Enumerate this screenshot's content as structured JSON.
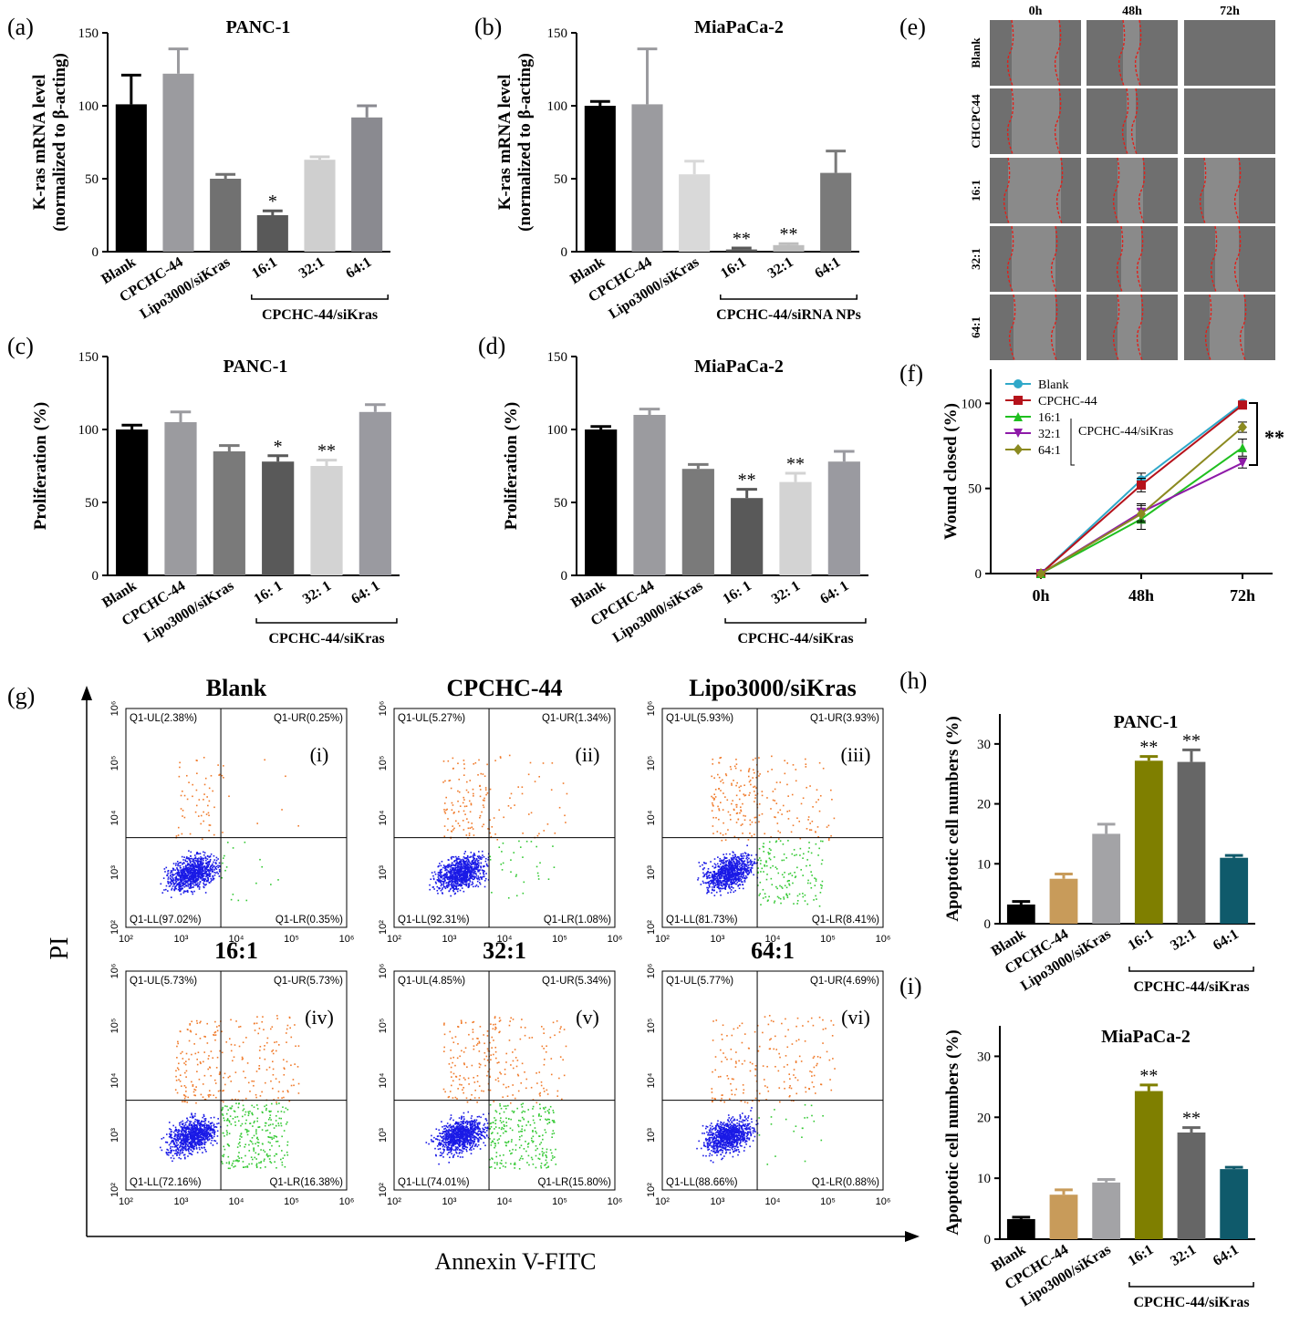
{
  "figure": {
    "panel_labels": [
      "(a)",
      "(b)",
      "(c)",
      "(d)",
      "(e)",
      "(f)",
      "(g)",
      "(h)",
      "(i)"
    ]
  },
  "chart_data": [
    {
      "id": "a",
      "type": "bar",
      "title": "PANC-1",
      "ylabel_lines": [
        "K-ras mRNA level",
        "(normalized to β-acting)"
      ],
      "ylim": [
        0,
        150
      ],
      "yticks": [
        0,
        50,
        100,
        150
      ],
      "categories": [
        "Blank",
        "CPCHC-44",
        "Lipo3000/siKras",
        "16:1",
        "32:1",
        "64:1"
      ],
      "values": [
        101,
        122,
        50,
        25,
        63,
        92
      ],
      "errors": [
        20,
        17,
        3,
        3,
        2,
        8
      ],
      "significance": [
        "",
        "",
        "",
        "*",
        "",
        ""
      ],
      "colors": [
        "#000000",
        "#9b9b9f",
        "#717171",
        "#595959",
        "#cfcfcf",
        "#8a8a90"
      ],
      "group_label": "CPCHC-44/siKras"
    },
    {
      "id": "b",
      "type": "bar",
      "title": "MiaPaCa-2",
      "ylabel_lines": [
        "K-ras mRNA level",
        "(normalized to β-acting)"
      ],
      "ylim": [
        0,
        150
      ],
      "yticks": [
        0,
        50,
        100,
        150
      ],
      "categories": [
        "Blank",
        "CPCHC-44",
        "Lipo3000/siKras",
        "16:1",
        "32:1",
        "64:1"
      ],
      "values": [
        100,
        101,
        53,
        1.5,
        4.5,
        54
      ],
      "errors": [
        3,
        38,
        9,
        1,
        1,
        15
      ],
      "significance": [
        "",
        "",
        "",
        "**",
        "**",
        ""
      ],
      "colors": [
        "#000000",
        "#9b9b9f",
        "#d9d9d9",
        "#595959",
        "#bdbdbd",
        "#7a7a7a"
      ],
      "group_label": "CPCHC-44/siRNA NPs"
    },
    {
      "id": "c",
      "type": "bar",
      "title": "PANC-1",
      "ylabel_lines": [
        "Proliferation (%)"
      ],
      "ylim": [
        0,
        150
      ],
      "yticks": [
        0,
        50,
        100,
        150
      ],
      "categories": [
        "Blank",
        "CPCHC-44",
        "Lipo3000/siKras",
        "16: 1",
        "32: 1",
        "64: 1"
      ],
      "values": [
        100,
        105,
        85,
        78,
        75,
        112
      ],
      "errors": [
        3,
        7,
        4,
        4,
        4,
        5
      ],
      "significance": [
        "",
        "",
        "",
        "*",
        "**",
        ""
      ],
      "colors": [
        "#000000",
        "#9b9b9f",
        "#7a7a7a",
        "#595959",
        "#d3d3d3",
        "#9a9aa0"
      ],
      "group_label": "CPCHC-44/siKras"
    },
    {
      "id": "d",
      "type": "bar",
      "title": "MiaPaCa-2",
      "ylabel_lines": [
        "Proliferation (%)"
      ],
      "ylim": [
        0,
        150
      ],
      "yticks": [
        0,
        50,
        100,
        150
      ],
      "categories": [
        "Blank",
        "CPCHC-44",
        "Lipo3000/siKras",
        "16: 1",
        "32: 1",
        "64: 1"
      ],
      "values": [
        100,
        110,
        73,
        53,
        64,
        78
      ],
      "errors": [
        2,
        4,
        3,
        6,
        6,
        7
      ],
      "significance": [
        "",
        "",
        "",
        "**",
        "**",
        ""
      ],
      "colors": [
        "#000000",
        "#9b9b9f",
        "#7a7a7a",
        "#595959",
        "#d3d3d3",
        "#9a9aa0"
      ],
      "group_label": "CPCHC-44/siKras"
    },
    {
      "id": "f",
      "type": "line",
      "ylabel": "Wound closed (%)",
      "ylim": [
        0,
        120
      ],
      "yticks": [
        0,
        50,
        100
      ],
      "x": [
        "0h",
        "48h",
        "72h"
      ],
      "series": [
        {
          "name": "Blank",
          "values": [
            0,
            55,
            100
          ],
          "errors": [
            0,
            4,
            1
          ],
          "color": "#2fa8c9",
          "marker": "circle"
        },
        {
          "name": "CPCHC-44",
          "values": [
            0,
            52,
            99
          ],
          "errors": [
            0,
            4,
            1
          ],
          "color": "#b5121b",
          "marker": "square"
        },
        {
          "name": "16:1",
          "values": [
            0,
            32,
            74
          ],
          "errors": [
            0,
            6,
            5
          ],
          "color": "#1fbf1f",
          "marker": "triangle-up"
        },
        {
          "name": "32:1",
          "values": [
            0,
            36,
            65
          ],
          "errors": [
            0,
            5,
            3
          ],
          "color": "#8e1aa8",
          "marker": "triangle-down"
        },
        {
          "name": "64:1",
          "values": [
            0,
            35,
            86
          ],
          "errors": [
            0,
            5,
            3
          ],
          "color": "#8b8a20",
          "marker": "diamond"
        }
      ],
      "legend_group_label": "CPCHC-44/siKras",
      "significance": "**"
    },
    {
      "id": "h",
      "type": "bar",
      "title": "PANC-1",
      "ylabel": "Apoptotic cell numbers (%)",
      "ylim": [
        0,
        35
      ],
      "yticks": [
        0,
        10,
        20,
        30
      ],
      "categories": [
        "Blank",
        "CPCHC-44",
        "Lipo3000/siKras",
        "16:1",
        "32:1",
        "64:1"
      ],
      "values": [
        3.2,
        7.5,
        15,
        27.2,
        27,
        11
      ],
      "errors": [
        0.5,
        0.8,
        1.6,
        0.7,
        2,
        0.4
      ],
      "significance": [
        "",
        "",
        "",
        "**",
        "**",
        ""
      ],
      "colors": [
        "#000000",
        "#c89b5a",
        "#a3a3a6",
        "#7f7f00",
        "#666666",
        "#0f5a6b"
      ],
      "group_label": "CPCHC-44/siKras"
    },
    {
      "id": "i",
      "type": "bar",
      "title": "MiaPaCa-2",
      "ylabel": "Apoptotic cell numbers (%)",
      "ylim": [
        0,
        35
      ],
      "yticks": [
        0,
        10,
        20,
        30
      ],
      "categories": [
        "Blank",
        "CPCHC-44",
        "Lipo3000/siKras",
        "16:1",
        "32:1",
        "64:1"
      ],
      "values": [
        3.3,
        7.3,
        9.3,
        24.3,
        17.5,
        11.5
      ],
      "errors": [
        0.3,
        0.8,
        0.5,
        1.0,
        0.8,
        0.3
      ],
      "significance": [
        "",
        "",
        "",
        "**",
        "**",
        ""
      ],
      "colors": [
        "#000000",
        "#c89b5a",
        "#a3a3a6",
        "#7f7f00",
        "#666666",
        "#0f5a6b"
      ],
      "group_label": "CPCHC-44/siKras"
    }
  ],
  "wound_images": {
    "columns": [
      "0h",
      "48h",
      "72h"
    ],
    "rows": [
      "Blank",
      "CHCPC44",
      "16:1",
      "32:1",
      "64:1"
    ]
  },
  "flow": {
    "xlabel": "Annexin V-FITC",
    "ylabel": "PI",
    "tick_labels": [
      "10²",
      "10³",
      "10⁴",
      "10⁵",
      "10⁶"
    ],
    "plots": [
      {
        "title": "Blank",
        "roman": "(i)",
        "ul": "Q1-UL(2.38%)",
        "ur": "Q1-UR(0.25%)",
        "ll": "Q1-LL(97.02%)",
        "lr": "Q1-LR(0.35%)"
      },
      {
        "title": "CPCHC-44",
        "roman": "(ii)",
        "ul": "Q1-UL(5.27%)",
        "ur": "Q1-UR(1.34%)",
        "ll": "Q1-LL(92.31%)",
        "lr": "Q1-LR(1.08%)"
      },
      {
        "title": "Lipo3000/siKras",
        "roman": "(iii)",
        "ul": "Q1-UL(5.93%)",
        "ur": "Q1-UR(3.93%)",
        "ll": "Q1-LL(81.73%)",
        "lr": "Q1-LR(8.41%)"
      },
      {
        "title": "16:1",
        "roman": "(iv)",
        "ul": "Q1-UL(5.73%)",
        "ur": "Q1-UR(5.73%)",
        "ll": "Q1-LL(72.16%)",
        "lr": "Q1-LR(16.38%)"
      },
      {
        "title": "32:1",
        "roman": "(v)",
        "ul": "Q1-UL(4.85%)",
        "ur": "Q1-UR(5.34%)",
        "ll": "Q1-LL(74.01%)",
        "lr": "Q1-LR(15.80%)"
      },
      {
        "title": "64:1",
        "roman": "(vi)",
        "ul": "Q1-UL(5.77%)",
        "ur": "Q1-UR(4.69%)",
        "ll": "Q1-LL(88.66%)",
        "lr": "Q1-LR(0.88%)"
      }
    ]
  }
}
